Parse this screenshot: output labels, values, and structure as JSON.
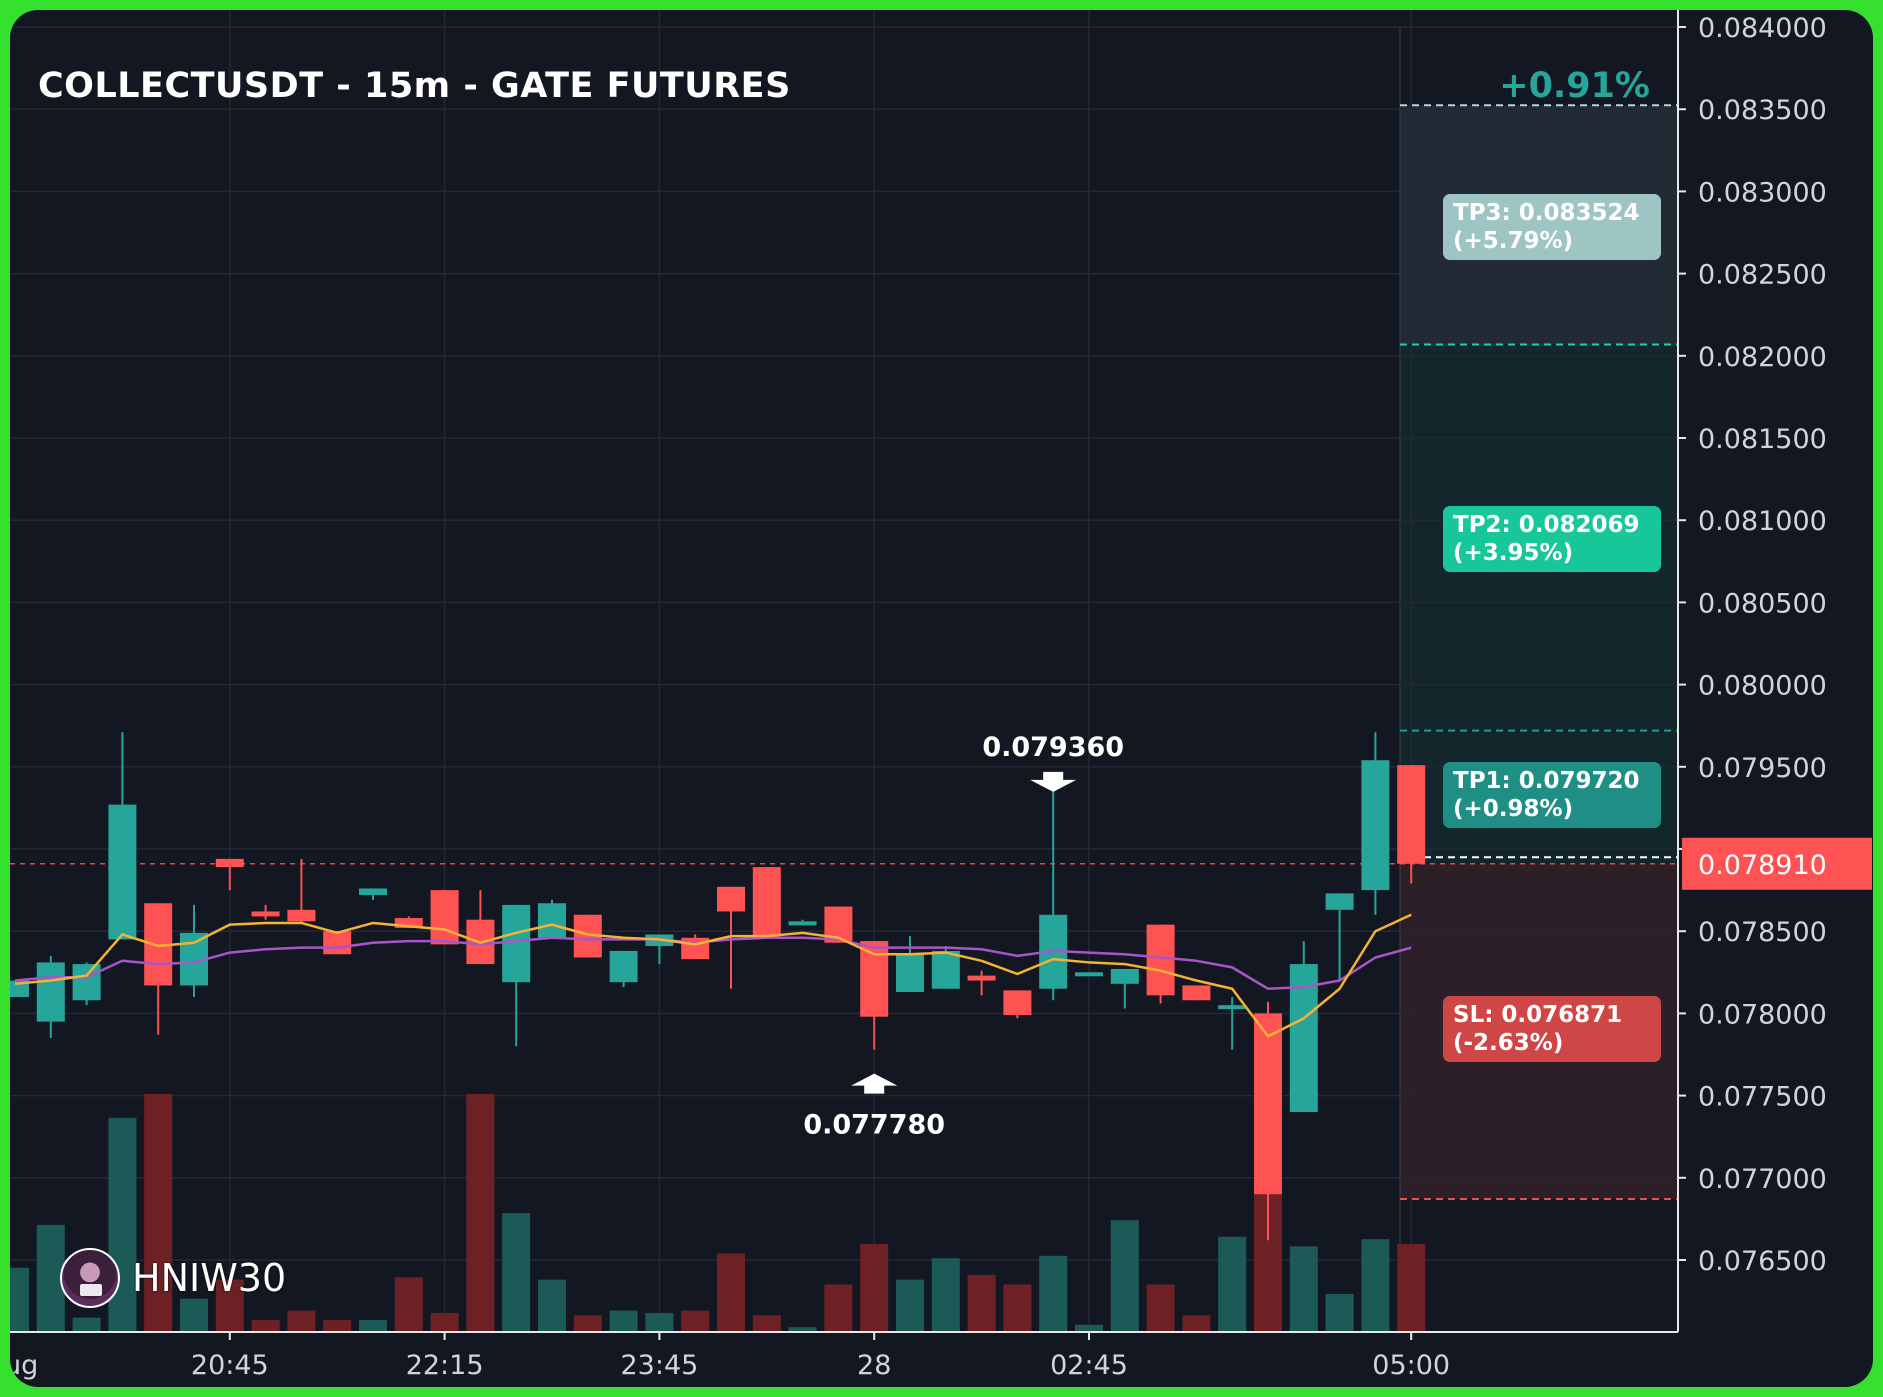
{
  "header": {
    "title": "COLLECTUSDT - 15m - GATE FUTURES",
    "change_pct": "+0.91%"
  },
  "levels": {
    "tp3": {
      "line1": "TP3: 0.083524",
      "line2": "(+5.79%)",
      "price": 0.083524,
      "color": "#9ec5c4"
    },
    "tp2": {
      "line1": "TP2: 0.082069",
      "line2": "(+3.95%)",
      "price": 0.082069,
      "color": "#17c79a"
    },
    "tp1": {
      "line1": "TP1: 0.079720",
      "line2": "(+0.98%)",
      "price": 0.07972,
      "color": "#1f8f86"
    },
    "sl": {
      "line1": "SL: 0.076871",
      "line2": "(-2.63%)",
      "price": 0.076871,
      "color": "#cf4646"
    },
    "entry": 0.07895
  },
  "watermark": {
    "name": "HNIW30"
  },
  "colors": {
    "background": "#131722",
    "frame": "#35e02f",
    "up": "#26a69a",
    "down": "#ff5252",
    "vol_up": "#1c5a58",
    "vol_down": "#6e2124",
    "ma_fast": "#f5b335",
    "ma_slow": "#a855c7",
    "last_price": "#ff5252"
  },
  "chart_data": {
    "type": "candlestick",
    "title": "COLLECTUSDT - 15m - GATE FUTURES",
    "y_ticks": [
      "0.084000",
      "0.083500",
      "0.083000",
      "0.082500",
      "0.082000",
      "0.081500",
      "0.081000",
      "0.080500",
      "0.080000",
      "0.079500",
      "0.079000",
      "0.078500",
      "0.078000",
      "0.077500",
      "0.077000",
      "0.076500"
    ],
    "ylim": [
      0.0761,
      0.0841
    ],
    "x_ticks": [
      {
        "index": 6,
        "label": "20:45"
      },
      {
        "index": 12,
        "label": "22:15"
      },
      {
        "index": 18,
        "label": "23:45"
      },
      {
        "index": 24,
        "label": "28"
      },
      {
        "index": 30,
        "label": "02:45"
      },
      {
        "index": 39,
        "label": "05:00"
      }
    ],
    "x_clipped_label": "ug",
    "last_price": "0.078910",
    "annotations": [
      {
        "label": "0.079360",
        "index": 29,
        "value": 0.07936,
        "kind": "high"
      },
      {
        "label": "0.077780",
        "index": 24,
        "value": 0.07778,
        "kind": "low"
      }
    ],
    "candles": [
      {
        "o": 0.0781,
        "h": 0.0782,
        "l": 0.0781,
        "c": 0.0782
      },
      {
        "o": 0.07795,
        "h": 0.07835,
        "l": 0.07785,
        "c": 0.07831
      },
      {
        "o": 0.07808,
        "h": 0.07831,
        "l": 0.07805,
        "c": 0.0783
      },
      {
        "o": 0.07845,
        "h": 0.07971,
        "l": 0.07845,
        "c": 0.07927
      },
      {
        "o": 0.07867,
        "h": 0.07867,
        "l": 0.07787,
        "c": 0.07817
      },
      {
        "o": 0.07817,
        "h": 0.07866,
        "l": 0.0781,
        "c": 0.07849
      },
      {
        "o": 0.07894,
        "h": 0.07894,
        "l": 0.07875,
        "c": 0.07889
      },
      {
        "o": 0.07862,
        "h": 0.07866,
        "l": 0.07857,
        "c": 0.07859
      },
      {
        "o": 0.07863,
        "h": 0.07894,
        "l": 0.07855,
        "c": 0.07856
      },
      {
        "o": 0.0785,
        "h": 0.0785,
        "l": 0.07836,
        "c": 0.07836
      },
      {
        "o": 0.07872,
        "h": 0.07876,
        "l": 0.07869,
        "c": 0.07876
      },
      {
        "o": 0.07858,
        "h": 0.07859,
        "l": 0.07852,
        "c": 0.07852
      },
      {
        "o": 0.07875,
        "h": 0.07875,
        "l": 0.07842,
        "c": 0.07842
      },
      {
        "o": 0.07857,
        "h": 0.07875,
        "l": 0.0783,
        "c": 0.0783
      },
      {
        "o": 0.07819,
        "h": 0.07866,
        "l": 0.0778,
        "c": 0.07866
      },
      {
        "o": 0.07846,
        "h": 0.07869,
        "l": 0.07846,
        "c": 0.07867
      },
      {
        "o": 0.0786,
        "h": 0.0786,
        "l": 0.07834,
        "c": 0.07834
      },
      {
        "o": 0.07819,
        "h": 0.07838,
        "l": 0.07816,
        "c": 0.07838
      },
      {
        "o": 0.07841,
        "h": 0.07847,
        "l": 0.0783,
        "c": 0.07848
      },
      {
        "o": 0.07846,
        "h": 0.07848,
        "l": 0.07833,
        "c": 0.07833
      },
      {
        "o": 0.07877,
        "h": 0.07877,
        "l": 0.07815,
        "c": 0.07862
      },
      {
        "o": 0.07889,
        "h": 0.07889,
        "l": 0.07847,
        "c": 0.07847
      },
      {
        "o": 0.07856,
        "h": 0.07857,
        "l": 0.07856,
        "c": 0.07856
      },
      {
        "o": 0.07865,
        "h": 0.07865,
        "l": 0.07843,
        "c": 0.07843
      },
      {
        "o": 0.07844,
        "h": 0.07844,
        "l": 0.07778,
        "c": 0.07798
      },
      {
        "o": 0.07813,
        "h": 0.07847,
        "l": 0.07813,
        "c": 0.07836
      },
      {
        "o": 0.07815,
        "h": 0.07841,
        "l": 0.07815,
        "c": 0.07838
      },
      {
        "o": 0.07823,
        "h": 0.07826,
        "l": 0.07811,
        "c": 0.0782
      },
      {
        "o": 0.07814,
        "h": 0.07814,
        "l": 0.07797,
        "c": 0.07799
      },
      {
        "o": 0.07815,
        "h": 0.07936,
        "l": 0.07808,
        "c": 0.0786
      },
      {
        "o": 0.07825,
        "h": 0.07825,
        "l": 0.07825,
        "c": 0.07825
      },
      {
        "o": 0.07818,
        "h": 0.07827,
        "l": 0.07803,
        "c": 0.07827
      },
      {
        "o": 0.07854,
        "h": 0.07854,
        "l": 0.07806,
        "c": 0.07811
      },
      {
        "o": 0.07817,
        "h": 0.07817,
        "l": 0.07808,
        "c": 0.07808
      },
      {
        "o": 0.07803,
        "h": 0.0781,
        "l": 0.07778,
        "c": 0.07805
      },
      {
        "o": 0.078,
        "h": 0.07807,
        "l": 0.07662,
        "c": 0.0769
      },
      {
        "o": 0.0774,
        "h": 0.07844,
        "l": 0.0774,
        "c": 0.0783
      },
      {
        "o": 0.07863,
        "h": 0.07873,
        "l": 0.0782,
        "c": 0.07873
      },
      {
        "o": 0.07875,
        "h": 0.07971,
        "l": 0.0786,
        "c": 0.07954
      },
      {
        "o": 0.07951,
        "h": 0.07951,
        "l": 0.07879,
        "c": 0.07891
      }
    ],
    "volume": [
      0.27,
      0.45,
      0.06,
      0.9,
      1.0,
      0.14,
      0.22,
      0.05,
      0.09,
      0.05,
      0.05,
      0.23,
      0.08,
      1.0,
      0.5,
      0.22,
      0.07,
      0.09,
      0.08,
      0.09,
      0.33,
      0.07,
      0.02,
      0.2,
      0.37,
      0.22,
      0.31,
      0.24,
      0.2,
      0.32,
      0.03,
      0.47,
      0.2,
      0.07,
      0.4,
      0.78,
      0.36,
      0.16,
      0.39,
      0.37
    ],
    "ma_fast": [
      0.07818,
      0.0782,
      0.07823,
      0.07848,
      0.07841,
      0.07843,
      0.07854,
      0.07855,
      0.07855,
      0.07849,
      0.07855,
      0.07853,
      0.07851,
      0.07843,
      0.07849,
      0.07854,
      0.07848,
      0.07846,
      0.07845,
      0.07842,
      0.07847,
      0.07847,
      0.07849,
      0.07846,
      0.07836,
      0.07836,
      0.07837,
      0.07832,
      0.07824,
      0.07833,
      0.07831,
      0.0783,
      0.07826,
      0.0782,
      0.07815,
      0.07786,
      0.07797,
      0.07815,
      0.0785,
      0.0786
    ],
    "ma_slow": [
      0.0782,
      0.07822,
      0.07822,
      0.07832,
      0.0783,
      0.07831,
      0.07837,
      0.07839,
      0.0784,
      0.0784,
      0.07843,
      0.07844,
      0.07844,
      0.07842,
      0.07844,
      0.07846,
      0.07845,
      0.07845,
      0.07845,
      0.07843,
      0.07845,
      0.07846,
      0.07846,
      0.07845,
      0.0784,
      0.0784,
      0.0784,
      0.07839,
      0.07835,
      0.07838,
      0.07837,
      0.07836,
      0.07834,
      0.07832,
      0.07828,
      0.07815,
      0.07816,
      0.0782,
      0.07834,
      0.0784
    ]
  }
}
